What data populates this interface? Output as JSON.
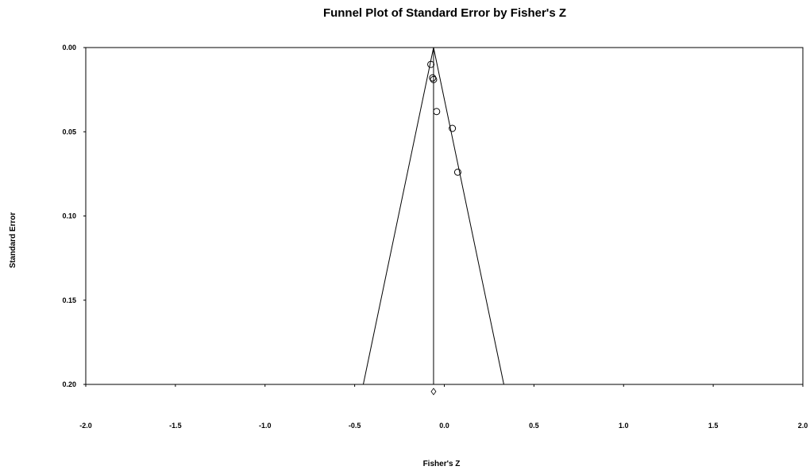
{
  "chart_data": {
    "type": "scatter",
    "title": "Funnel Plot of Standard Error by Fisher's Z",
    "xlabel": "Fisher's Z",
    "ylabel": "Standard Error",
    "xlim": [
      -2.0,
      2.0
    ],
    "ylim": [
      0.0,
      0.2
    ],
    "y_inverted": true,
    "x_ticks": [
      "-2.0",
      "-1.5",
      "-1.0",
      "-0.5",
      "0.0",
      "0.5",
      "1.0",
      "1.5",
      "2.0"
    ],
    "y_ticks": [
      "0.00",
      "0.05",
      "0.10",
      "0.15",
      "0.20"
    ],
    "grid": false,
    "legend": "none",
    "combined_effect": -0.06,
    "funnel_limits": {
      "left_at_max_se": -0.452,
      "right_at_max_se": 0.332,
      "max_se": 0.2
    },
    "points": [
      {
        "x": -0.075,
        "y": 0.01
      },
      {
        "x": -0.065,
        "y": 0.018
      },
      {
        "x": -0.06,
        "y": 0.019
      },
      {
        "x": -0.043,
        "y": 0.038
      },
      {
        "x": 0.045,
        "y": 0.048
      },
      {
        "x": 0.075,
        "y": 0.074
      }
    ],
    "summary_marker": {
      "x": -0.06,
      "shape": "diamond"
    }
  }
}
